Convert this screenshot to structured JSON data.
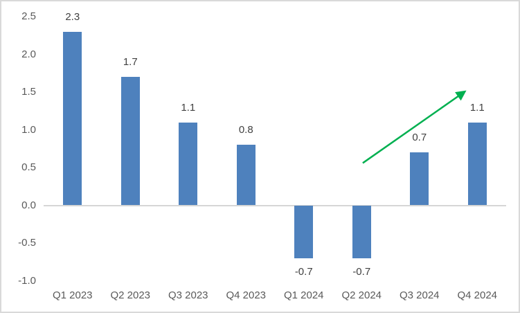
{
  "chart_data": {
    "type": "bar",
    "title": "",
    "xlabel": "",
    "ylabel": "",
    "categories": [
      "Q1 2023",
      "Q2 2023",
      "Q3 2023",
      "Q4 2023",
      "Q1 2024",
      "Q2 2024",
      "Q3 2024",
      "Q4 2024"
    ],
    "values": [
      2.3,
      1.7,
      1.1,
      0.8,
      -0.7,
      -0.7,
      0.7,
      1.1
    ],
    "data_labels": [
      "2.3",
      "1.7",
      "1.1",
      "0.8",
      "-0.7",
      "-0.7",
      "0.7",
      "1.1"
    ],
    "ylim": [
      -1.0,
      2.5
    ],
    "y_ticks": [
      2.5,
      2.0,
      1.5,
      1.0,
      0.5,
      0.0,
      -0.5,
      -1.0
    ],
    "y_tick_labels": [
      "2.5",
      "2.0",
      "1.5",
      "1.0",
      "0.5",
      "0.0",
      "-0.5",
      "-1.0"
    ],
    "grid": false,
    "legend": false,
    "annotation": {
      "type": "arrow",
      "description": "upward trend arrow",
      "from": {
        "x_frac": 0.69,
        "y_value": 0.56
      },
      "to": {
        "x_frac": 0.916,
        "y_value": 1.53
      }
    }
  },
  "colors": {
    "bar": "#4E81BD",
    "axis_line": "#D6D6D6",
    "tick_label": "#595959",
    "data_label": "#404040",
    "frame_border": "#D9D9D9",
    "background": "#FFFFFF",
    "arrow": "#00B050"
  }
}
